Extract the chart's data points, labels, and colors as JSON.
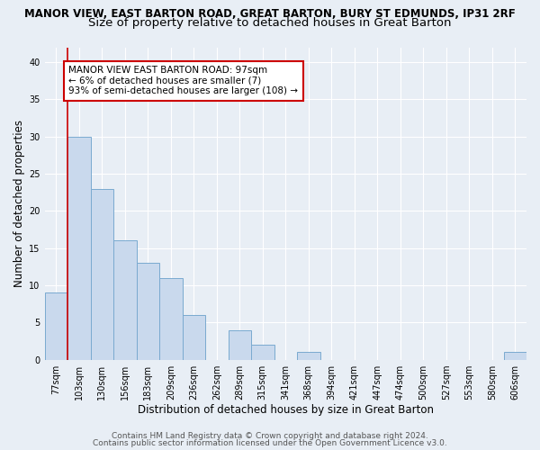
{
  "title_line1": "MANOR VIEW, EAST BARTON ROAD, GREAT BARTON, BURY ST EDMUNDS, IP31 2RF",
  "title_line2": "Size of property relative to detached houses in Great Barton",
  "xlabel": "Distribution of detached houses by size in Great Barton",
  "ylabel": "Number of detached properties",
  "categories": [
    "77sqm",
    "103sqm",
    "130sqm",
    "156sqm",
    "183sqm",
    "209sqm",
    "236sqm",
    "262sqm",
    "289sqm",
    "315sqm",
    "341sqm",
    "368sqm",
    "394sqm",
    "421sqm",
    "447sqm",
    "474sqm",
    "500sqm",
    "527sqm",
    "553sqm",
    "580sqm",
    "606sqm"
  ],
  "values": [
    9,
    30,
    23,
    16,
    13,
    11,
    6,
    0,
    4,
    2,
    0,
    1,
    0,
    0,
    0,
    0,
    0,
    0,
    0,
    0,
    1
  ],
  "bar_color": "#c9d9ed",
  "bar_edge_color": "#7aaad0",
  "annotation_box_text": "MANOR VIEW EAST BARTON ROAD: 97sqm\n← 6% of detached houses are smaller (7)\n93% of semi-detached houses are larger (108) →",
  "annotation_box_color": "#ffffff",
  "annotation_box_edge_color": "#cc0000",
  "background_color": "#e8eef5",
  "grid_color": "#ffffff",
  "footer_line1": "Contains HM Land Registry data © Crown copyright and database right 2024.",
  "footer_line2": "Contains public sector information licensed under the Open Government Licence v3.0.",
  "ylim": [
    0,
    42
  ],
  "yticks": [
    0,
    5,
    10,
    15,
    20,
    25,
    30,
    35,
    40
  ],
  "red_line_x": 0.5,
  "title_fontsize": 8.5,
  "subtitle_fontsize": 9.5,
  "axis_label_fontsize": 8.5,
  "tick_fontsize": 7,
  "annotation_fontsize": 7.5,
  "footer_fontsize": 6.5
}
